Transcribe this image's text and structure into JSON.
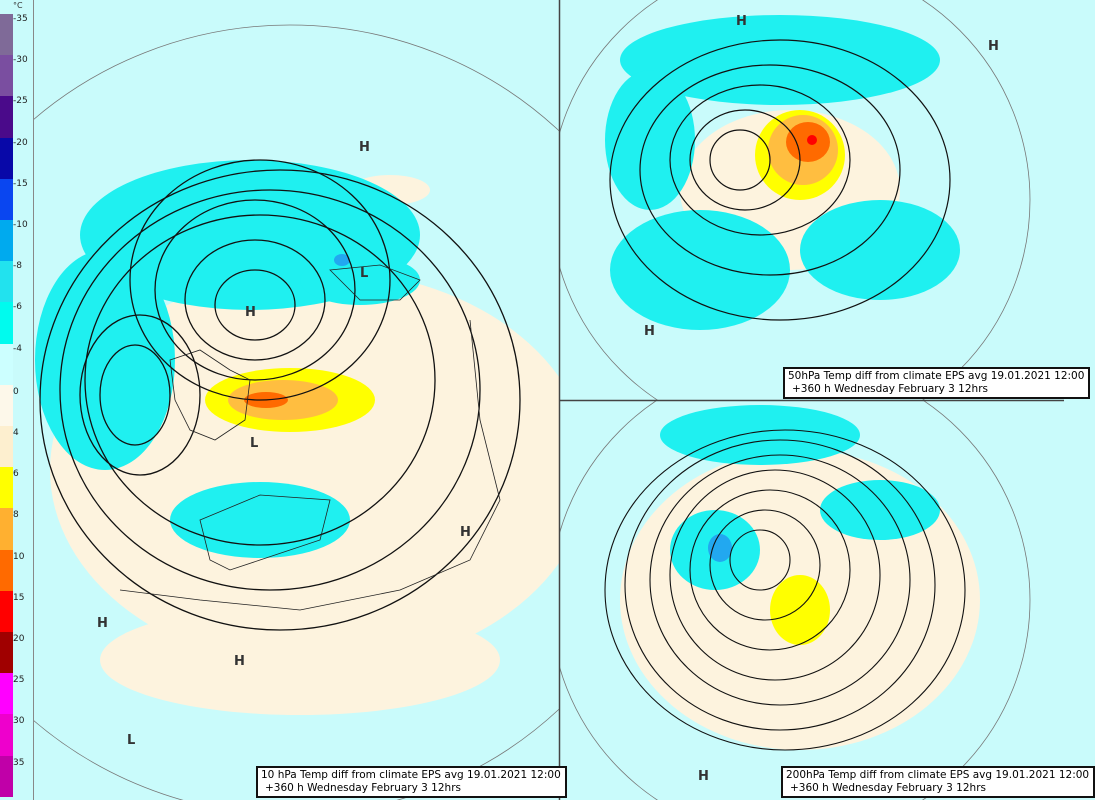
{
  "legend": {
    "unit": "°C",
    "labels": [
      "-35",
      "-30",
      "-25",
      "-20",
      "-15",
      "-10",
      "-8",
      "-6",
      "-4",
      "0",
      "4",
      "6",
      "8",
      "10",
      "15",
      "20",
      "25",
      "30",
      "35"
    ],
    "colors": [
      "#7f6a98",
      "#7a4ea0",
      "#4a0a8a",
      "#0808a8",
      "#0a46f0",
      "#00aaee",
      "#22e2ee",
      "#00fbee",
      "#ccffff",
      "#fdf8ea",
      "#fdefcf",
      "#ffff00",
      "#ffb030",
      "#ff6a00",
      "#ff0000",
      "#a00000",
      "#ff00ff",
      "#ee00cc",
      "#c000a8"
    ]
  },
  "panels": {
    "main": {
      "caption_line1": "10 hPa Temp diff from climate EPS avg 19.01.2021 12:00",
      "caption_line2": "+360 h Wednesday February 3 12hrs",
      "labels": [
        "H",
        "H",
        "L",
        "L",
        "H",
        "H",
        "H",
        "L"
      ]
    },
    "top_right": {
      "caption_line1": "50hPa Temp diff from climate EPS avg 19.01.2021 12:00",
      "caption_line2": "+360 h Wednesday February 3 12hrs",
      "labels": [
        "H",
        "H",
        "H"
      ]
    },
    "bottom_right": {
      "caption_line1": "200hPa Temp diff from climate EPS avg 19.01.2021 12:00",
      "caption_line2": "+360 h Wednesday February 3 12hrs",
      "labels": [
        "H"
      ]
    }
  }
}
